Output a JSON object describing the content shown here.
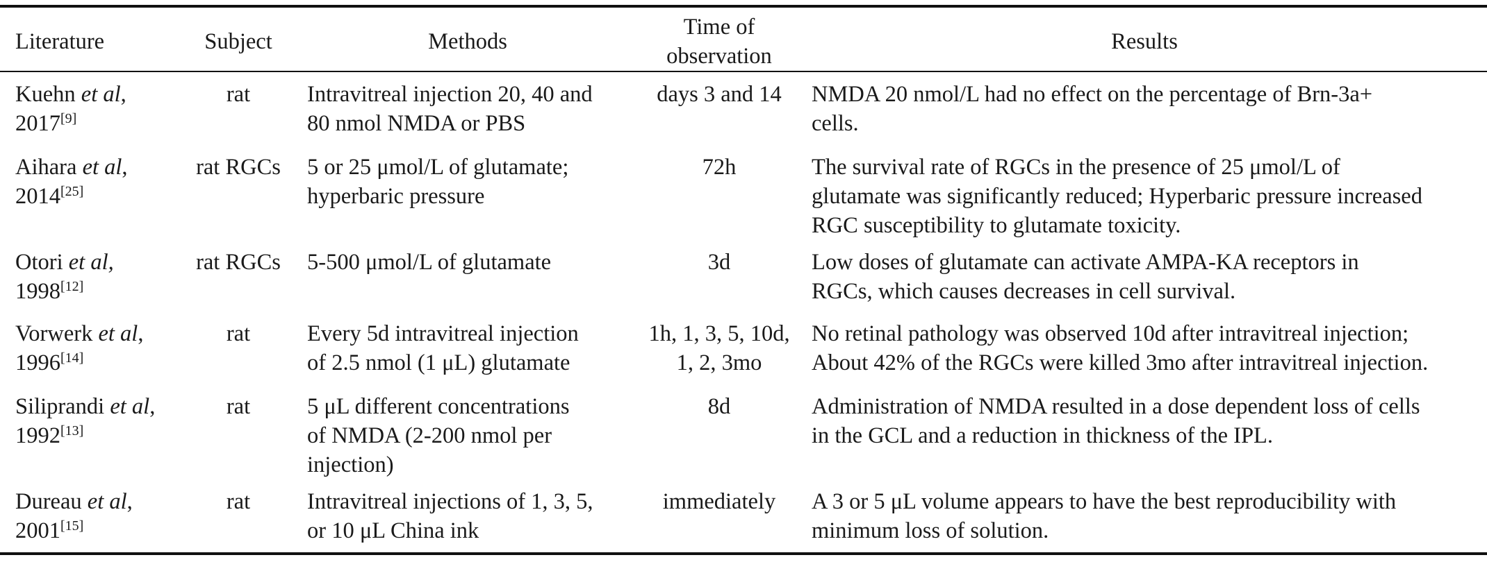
{
  "headers": {
    "literature": "Literature",
    "subject": "Subject",
    "methods": "Methods",
    "time_line1": "Time of",
    "time_line2": "observation",
    "results": "Results"
  },
  "rows": [
    {
      "author": "Kuehn",
      "etal": "et al",
      "year": "2017",
      "ref": "[9]",
      "subject": "rat",
      "methods": [
        "Intravitreal injection 20, 40 and",
        "80 nmol NMDA or PBS"
      ],
      "time": [
        "days 3 and 14"
      ],
      "results": [
        "NMDA 20 nmol/L had no effect on the percentage of Brn-3a+",
        "cells."
      ]
    },
    {
      "author": "Aihara",
      "etal": "et al",
      "year": "2014",
      "ref": "[25]",
      "subject": "rat RGCs",
      "methods": [
        "5 or 25 μmol/L of glutamate;",
        "hyperbaric pressure"
      ],
      "time": [
        "72h"
      ],
      "results": [
        "The survival rate of RGCs in the presence of 25 μmol/L of",
        "glutamate was significantly reduced; Hyperbaric pressure increased",
        "RGC susceptibility to glutamate toxicity."
      ]
    },
    {
      "author": "Otori",
      "etal": "et al,",
      "year": "1998",
      "ref": "[12]",
      "subject": "rat RGCs",
      "methods": [
        "5-500 μmol/L of glutamate"
      ],
      "time": [
        "3d"
      ],
      "results": [
        "Low doses of glutamate can activate AMPA-KA receptors in",
        "RGCs, which causes decreases in cell survival."
      ]
    },
    {
      "author": "Vorwerk",
      "etal": "et al",
      "year": "1996",
      "ref": "[14]",
      "subject": "rat",
      "methods": [
        "Every 5d intravitreal injection",
        "of 2.5 nmol (1 μL) glutamate"
      ],
      "time": [
        "1h, 1, 3, 5, 10d,",
        "1, 2, 3mo"
      ],
      "results": [
        "No retinal pathology was observed 10d after intravitreal injection;",
        "About 42% of the RGCs were killed 3mo after intravitreal injection."
      ]
    },
    {
      "author": "Siliprandi",
      "etal": "et al",
      "year": "1992",
      "ref": "[13]",
      "subject": "rat",
      "methods": [
        "5 μL different concentrations",
        "of NMDA  (2-200 nmol per",
        "injection)"
      ],
      "time": [
        "8d"
      ],
      "results": [
        "Administration of NMDA resulted in a dose dependent loss of cells",
        "in the GCL and a reduction in thickness of the IPL."
      ]
    },
    {
      "author": "Dureau",
      "etal": "et al",
      "year": "2001",
      "ref": "[15]",
      "subject": "rat",
      "methods": [
        "Intravitreal injections of 1, 3, 5,",
        "or 10 μL China ink"
      ],
      "time": [
        "immediately"
      ],
      "results": [
        "A 3 or 5 μL volume appears to have the best reproducibility with",
        "minimum loss of solution."
      ]
    }
  ]
}
